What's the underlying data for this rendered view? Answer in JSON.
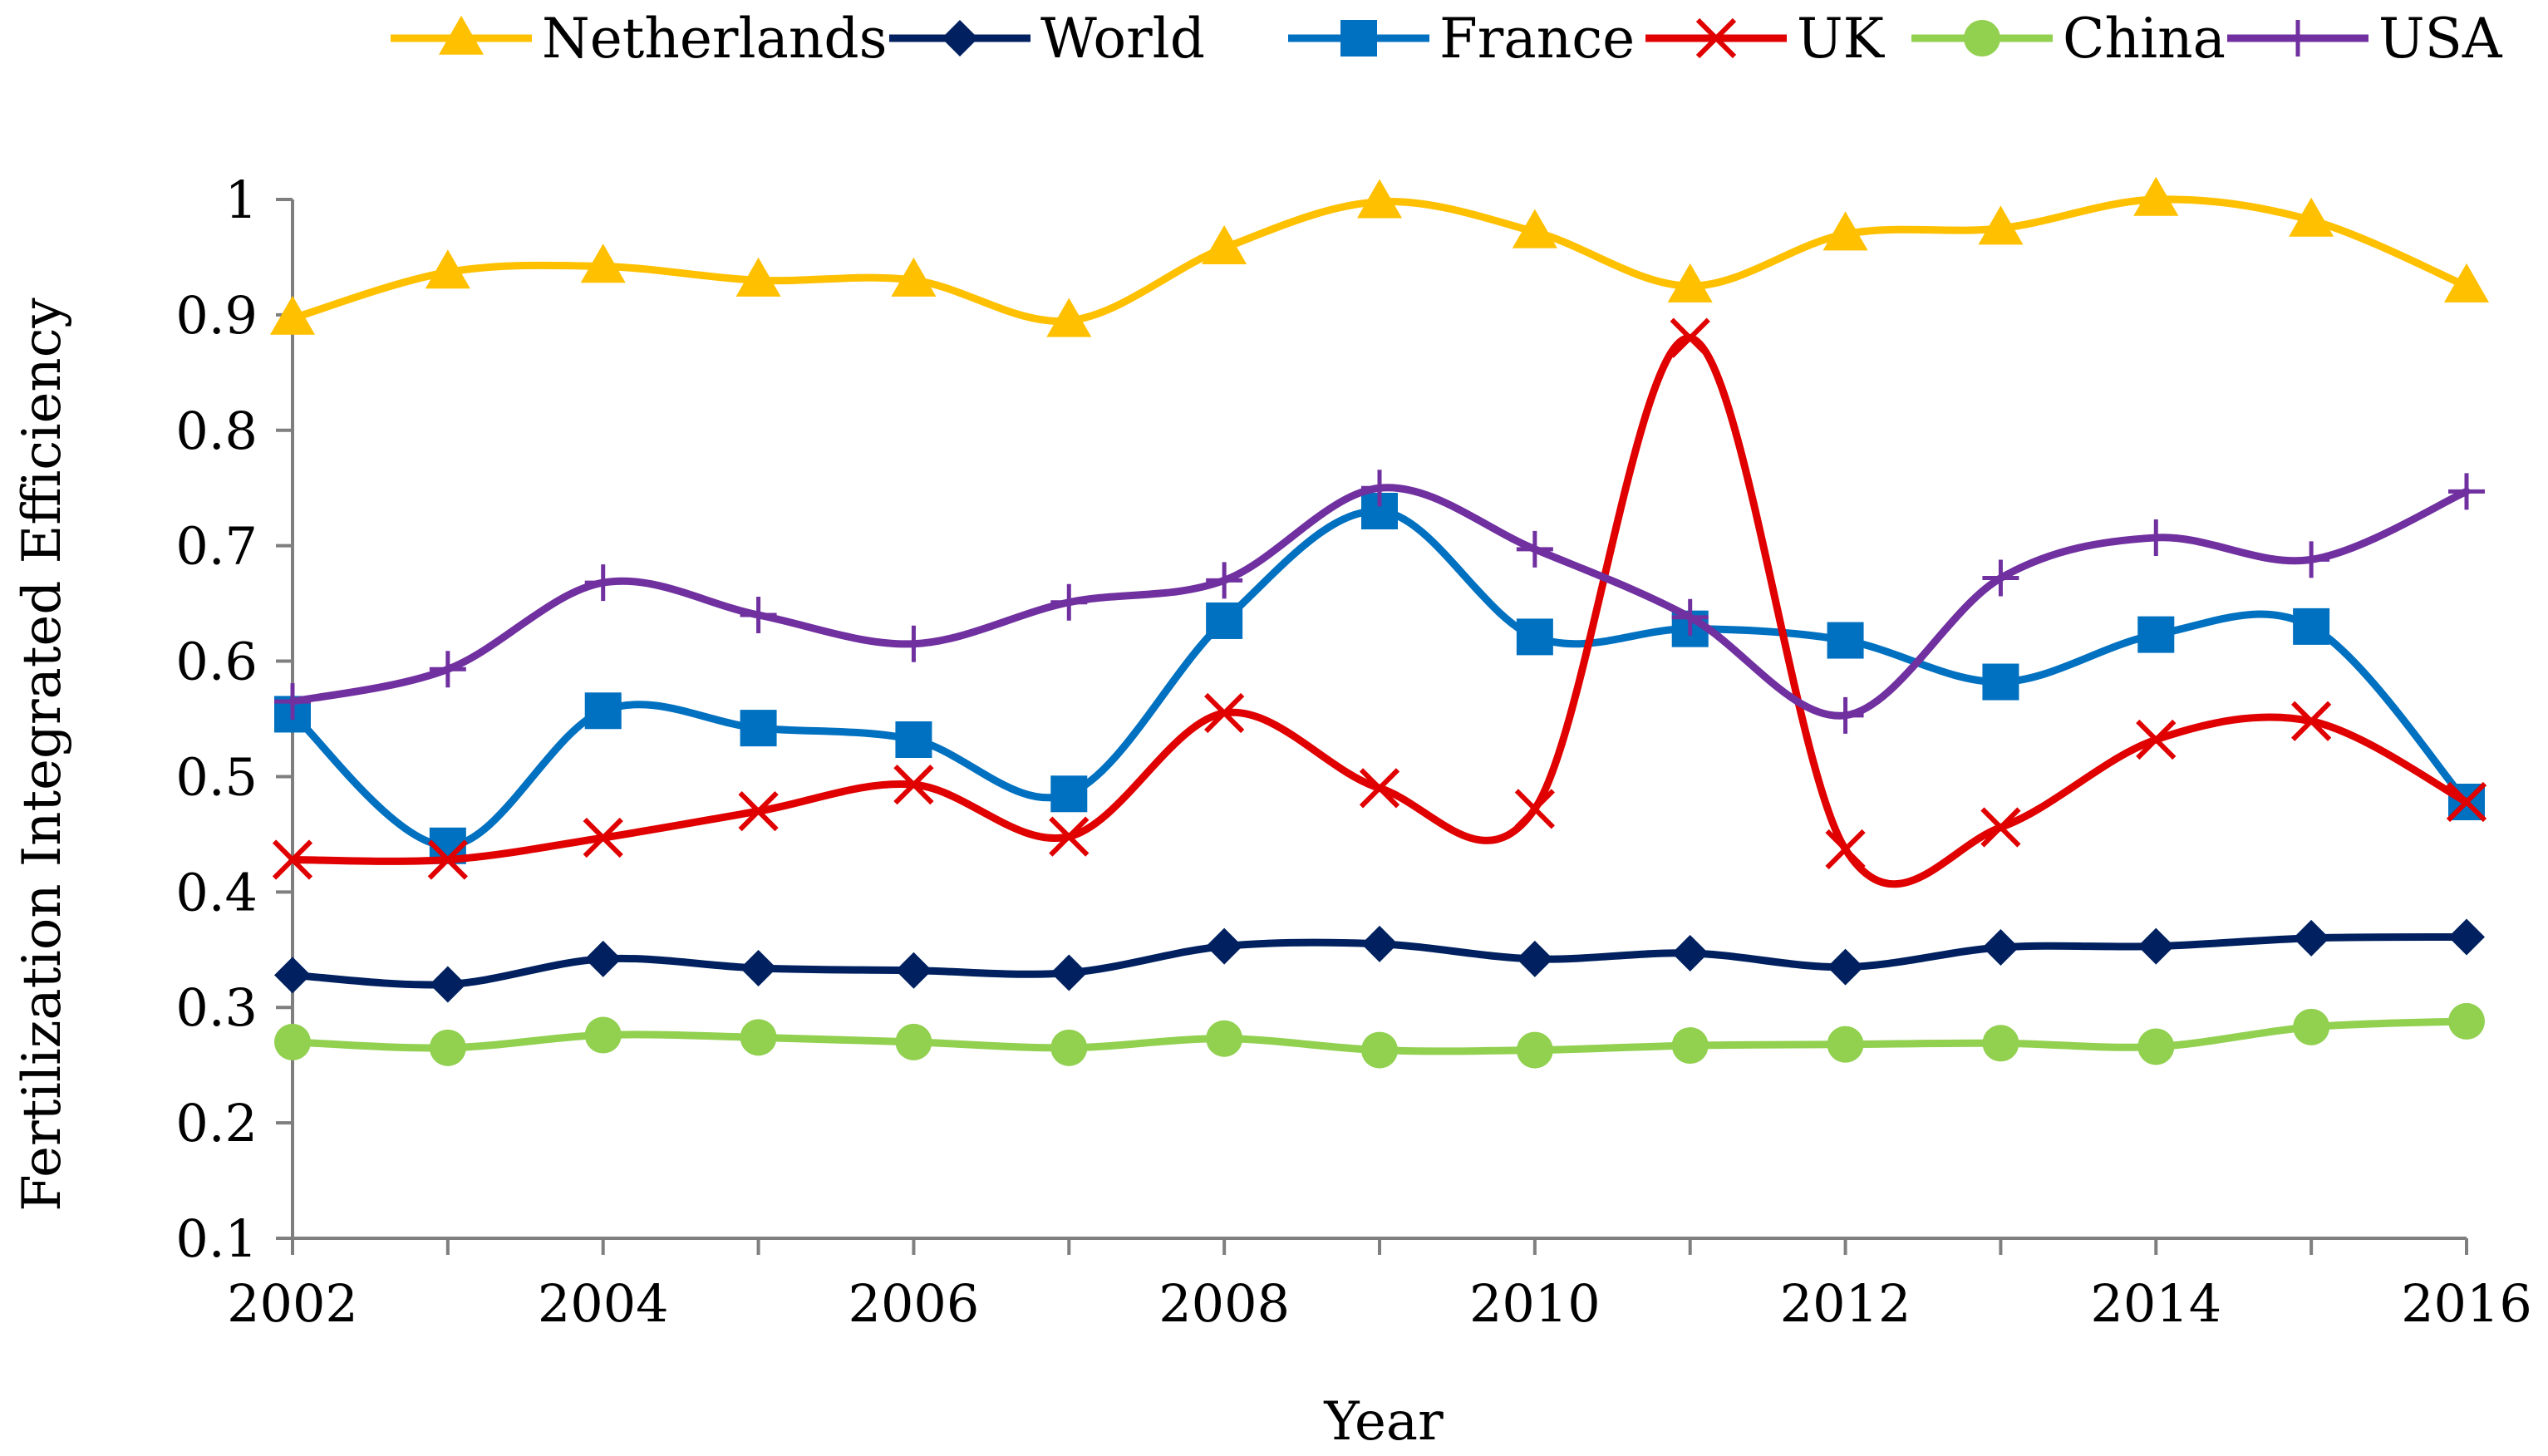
{
  "chart_data": {
    "type": "line",
    "title": "",
    "xlabel": "Year",
    "ylabel": "Fertilization Integrated Efficiency",
    "x": [
      2002,
      2003,
      2004,
      2005,
      2006,
      2007,
      2008,
      2009,
      2010,
      2011,
      2012,
      2013,
      2014,
      2015,
      2016
    ],
    "xlim": [
      2002,
      2016
    ],
    "ylim": [
      0.1,
      1.0
    ],
    "xticks": [
      "2002",
      "2004",
      "2006",
      "2008",
      "2010",
      "2012",
      "2014",
      "2016"
    ],
    "yticks": [
      "0.1",
      "0.2",
      "0.3",
      "0.4",
      "0.5",
      "0.6",
      "0.7",
      "0.8",
      "0.9",
      "1"
    ],
    "grid": false,
    "legend_position": "top",
    "smooth": true,
    "series": [
      {
        "name": "Netherlands",
        "color": "#FFC000",
        "marker": "triangle",
        "values": [
          0.897,
          0.937,
          0.942,
          0.93,
          0.93,
          0.895,
          0.958,
          0.998,
          0.972,
          0.925,
          0.97,
          0.975,
          1.0,
          0.982,
          0.925
        ]
      },
      {
        "name": "World",
        "color": "#002060",
        "marker": "diamond",
        "values": [
          0.328,
          0.32,
          0.342,
          0.334,
          0.332,
          0.33,
          0.353,
          0.355,
          0.342,
          0.347,
          0.335,
          0.352,
          0.353,
          0.36,
          0.361
        ]
      },
      {
        "name": "France",
        "color": "#0070C0",
        "marker": "square",
        "values": [
          0.554,
          0.44,
          0.557,
          0.542,
          0.532,
          0.485,
          0.635,
          0.73,
          0.621,
          0.628,
          0.618,
          0.582,
          0.623,
          0.63,
          0.478
        ]
      },
      {
        "name": "UK",
        "color": "#E00000",
        "marker": "x",
        "values": [
          0.428,
          0.428,
          0.447,
          0.47,
          0.493,
          0.448,
          0.555,
          0.49,
          0.472,
          0.88,
          0.437,
          0.456,
          0.532,
          0.548,
          0.478
        ]
      },
      {
        "name": "China",
        "color": "#92D050",
        "marker": "circle",
        "values": [
          0.27,
          0.265,
          0.276,
          0.274,
          0.27,
          0.265,
          0.273,
          0.263,
          0.263,
          0.267,
          0.268,
          0.269,
          0.266,
          0.283,
          0.288
        ]
      },
      {
        "name": "USA",
        "color": "#7030A0",
        "marker": "plus",
        "values": [
          0.565,
          0.593,
          0.668,
          0.64,
          0.615,
          0.651,
          0.67,
          0.75,
          0.697,
          0.638,
          0.553,
          0.672,
          0.707,
          0.688,
          0.747
        ]
      }
    ]
  }
}
